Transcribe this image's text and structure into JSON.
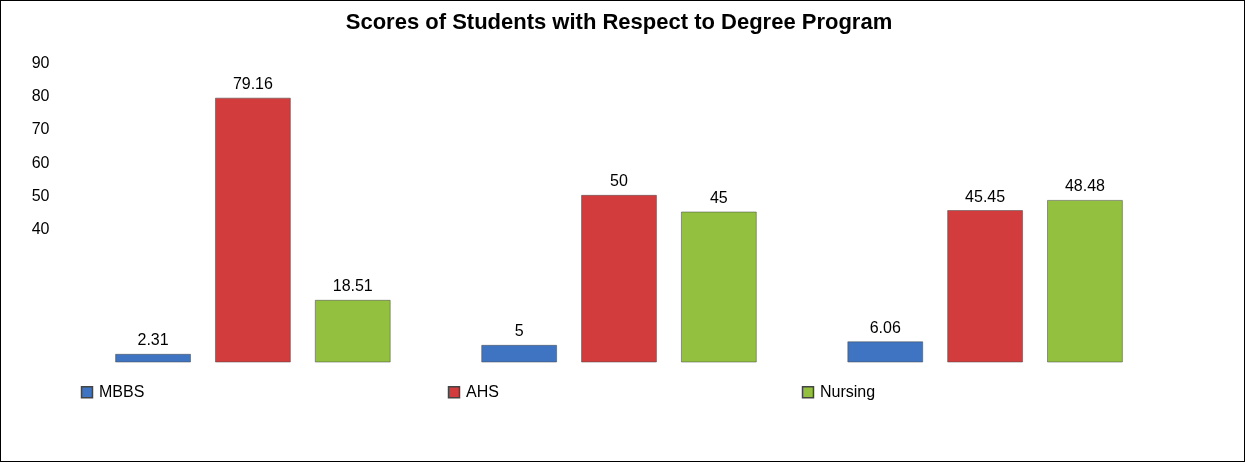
{
  "chart_data": {
    "type": "bar",
    "title": "Scores of Students with Respect to Degree Program",
    "categories": [
      null,
      null,
      null
    ],
    "series": [
      {
        "name": "MBBS",
        "color": "#3f74c2",
        "values": [
          2.31,
          5,
          6.06
        ]
      },
      {
        "name": "AHS",
        "color": "#d23c3c",
        "values": [
          79.16,
          50,
          45.45
        ]
      },
      {
        "name": "Nursing",
        "color": "#93c13f",
        "values": [
          18.51,
          45,
          48.48
        ]
      }
    ],
    "ylim": [
      0,
      90
    ],
    "yticks": [
      40,
      50,
      60,
      70,
      80,
      90
    ],
    "grid": false,
    "legend": "bottom",
    "data_labels": true
  }
}
